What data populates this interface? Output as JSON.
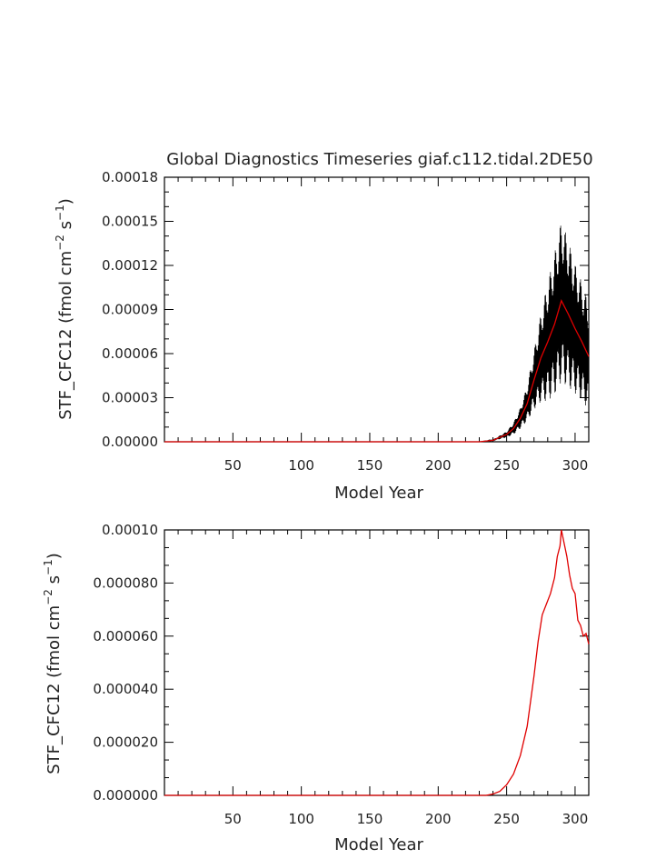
{
  "chart_data": [
    {
      "type": "line",
      "title": "Global Diagnostics Timeseries giaf.c112.tidal.2DE50",
      "xlabel": "Model Year",
      "ylabel": "STF_CFC12 (fmol cm-2 s-1)",
      "ylabel_parts": {
        "base": "STF_CFC12 (fmol cm",
        "exp1": "−2",
        "mid": " s",
        "exp2": "−1",
        "end": ")"
      },
      "xlim": [
        0,
        310
      ],
      "ylim": [
        0,
        0.00018
      ],
      "xticks": [
        50,
        100,
        150,
        200,
        250,
        300
      ],
      "yticks": [
        "0.00000",
        "0.00003",
        "0.00006",
        "0.00009",
        "0.00012",
        "0.00015",
        "0.00018"
      ],
      "ytick_values": [
        0,
        3e-05,
        6e-05,
        9e-05,
        0.00012,
        0.00015,
        0.00018
      ],
      "grid": false,
      "series": [
        {
          "kind": "monthly",
          "color": "#000000",
          "x": [
            0,
            230,
            240,
            250,
            255,
            260,
            265,
            270,
            275,
            280,
            285,
            290,
            295,
            300,
            305,
            310
          ],
          "y": [
            0,
            0,
            1e-06,
            5e-06,
            9e-06,
            1.6e-05,
            2.6e-05,
            4.2e-05,
            5.7e-05,
            6.8e-05,
            8e-05,
            9.6e-05,
            8.7e-05,
            7.7e-05,
            6.8e-05,
            5.8e-05
          ],
          "amplitude": [
            0,
            0,
            5e-07,
            2e-06,
            4e-06,
            7e-06,
            1.2e-05,
            2e-05,
            3e-05,
            4e-05,
            4.8e-05,
            5.5e-05,
            5e-05,
            4.4e-05,
            4e-05,
            3.6e-05
          ]
        },
        {
          "kind": "annual",
          "color": "#e00000",
          "x": [
            0,
            230,
            240,
            250,
            255,
            260,
            265,
            270,
            275,
            280,
            285,
            290,
            295,
            300,
            305,
            310
          ],
          "y": [
            0,
            0,
            1e-06,
            5e-06,
            9e-06,
            1.6e-05,
            2.6e-05,
            4.2e-05,
            5.7e-05,
            6.8e-05,
            8e-05,
            9.6e-05,
            8.7e-05,
            7.7e-05,
            6.8e-05,
            5.8e-05
          ]
        }
      ]
    },
    {
      "type": "line",
      "title": "",
      "xlabel": "Model Year",
      "ylabel": "STF_CFC12 (fmol cm-2 s-1)",
      "ylabel_parts": {
        "base": "STF_CFC12 (fmol cm",
        "exp1": "−2",
        "mid": " s",
        "exp2": "−1",
        "end": ")"
      },
      "xlim": [
        0,
        310
      ],
      "ylim": [
        0,
        0.0001
      ],
      "xticks": [
        50,
        100,
        150,
        200,
        250,
        300
      ],
      "yticks": [
        "0.000000",
        "0.000020",
        "0.000040",
        "0.000060",
        "0.000080",
        "0.00010"
      ],
      "ytick_values": [
        0,
        2e-05,
        4e-05,
        6e-05,
        8e-05,
        0.0001
      ],
      "grid": false,
      "series": [
        {
          "kind": "annual",
          "color": "#e00000",
          "x": [
            0,
            235,
            240,
            245,
            250,
            255,
            260,
            265,
            270,
            273,
            276,
            279,
            282,
            285,
            287,
            289,
            290,
            292,
            294,
            296,
            298,
            300,
            302,
            304,
            306,
            308,
            310
          ],
          "y": [
            0,
            0,
            5e-07,
            1.5e-06,
            4e-06,
            8e-06,
            1.5e-05,
            2.6e-05,
            4.5e-05,
            5.8e-05,
            6.8e-05,
            7.2e-05,
            7.6e-05,
            8.2e-05,
            9e-05,
            9.4e-05,
            0.0001,
            9.5e-05,
            9e-05,
            8.3e-05,
            7.8e-05,
            7.6e-05,
            6.6e-05,
            6.4e-05,
            6e-05,
            6.1e-05,
            5.7e-05
          ]
        }
      ]
    }
  ]
}
